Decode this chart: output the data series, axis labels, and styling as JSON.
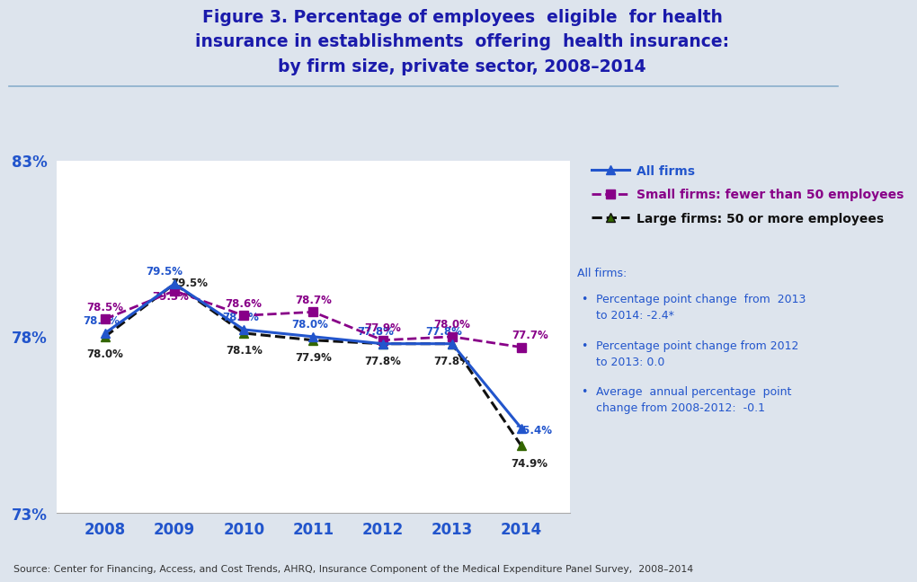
{
  "title_line1": "Figure 3. Percentage of employees  eligible  for health",
  "title_line2": "insurance in establishments  offering  health insurance:",
  "title_line3": "by firm size, private sector, 2008–2014",
  "title_color": "#1a1aab",
  "background_color": "#dde4ed",
  "plot_bg_color": "#ffffff",
  "years": [
    2008,
    2009,
    2010,
    2011,
    2012,
    2013,
    2014
  ],
  "all_firms": [
    78.1,
    79.5,
    78.2,
    78.0,
    77.8,
    77.8,
    75.4
  ],
  "small_firms": [
    78.5,
    79.3,
    78.6,
    78.7,
    77.9,
    78.0,
    77.7
  ],
  "large_firms": [
    78.0,
    79.5,
    78.1,
    77.9,
    77.8,
    77.8,
    74.9
  ],
  "all_firms_color": "#2255cc",
  "small_firms_color": "#880088",
  "large_firms_color": "#111111",
  "large_marker_color": "#336600",
  "ylim": [
    73,
    83
  ],
  "yticks": [
    73,
    78,
    83
  ],
  "ytick_labels": [
    "73%",
    "78%",
    "83%"
  ],
  "tick_color": "#2255cc",
  "legend_all": "All firms",
  "legend_small": "Small firms: fewer than 50 employees",
  "legend_large": "Large firms: 50 or more employees",
  "ann_title": "All firms:",
  "ann_bullet1": "Percentage point change  from  2013\nto 2014: -2.4*",
  "ann_bullet2": "Percentage point change from 2012\nto 2013: 0.0",
  "ann_bullet3": "Average  annual percentage  point\nchange from 2008-2012:  -0.1",
  "ann_color": "#2255cc",
  "source_text": "Source: Center for Financing, Access, and Cost Trends, AHRQ, Insurance Component of the Medical Expenditure Panel Survey,  2008–2014",
  "header_line_color": "#8aaecc",
  "all_labels": [
    "78.1%",
    "79.5%",
    "78.2%",
    "78.0%",
    "77.8%",
    "77.8%",
    "75.4%"
  ],
  "small_labels": [
    "78.5%",
    "79.3%",
    "78.6%",
    "78.7%",
    "77.9%",
    "78.0%",
    "77.7%"
  ],
  "large_labels": [
    "78.0%",
    "79.5%",
    "78.1%",
    "77.9%",
    "77.8%",
    "77.8%",
    "74.9%"
  ]
}
